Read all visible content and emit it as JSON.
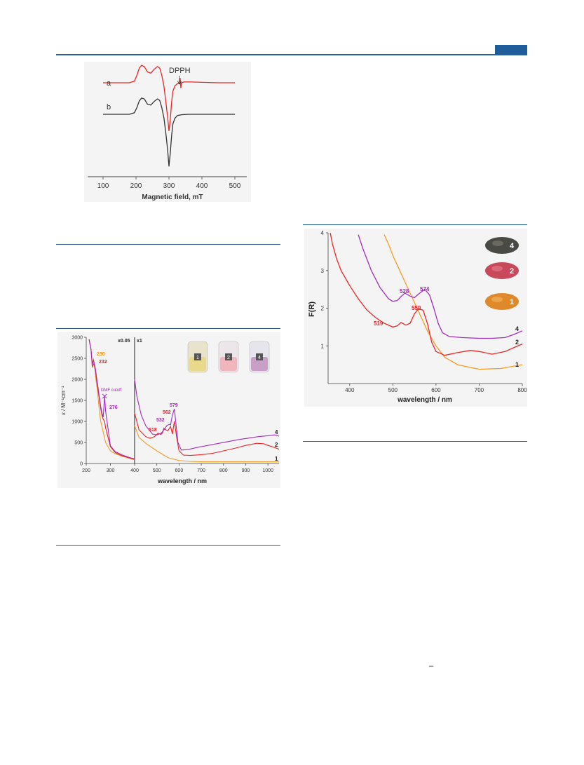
{
  "colors": {
    "rule": "#2a5f92",
    "tab": "#1f5c99",
    "red": "#ee2424",
    "orange": "#f59b24",
    "purple": "#a22cc0",
    "black": "#333333",
    "label_red": "#e3262b",
    "label_orange": "#f29a1a",
    "label_purple": "#a12ab5"
  },
  "stray_mark": "–",
  "chart_data": [
    {
      "id": "epr",
      "type": "line",
      "xlabel": "Magnetic field, mT",
      "ylabel": "",
      "xlim": [
        100,
        500
      ],
      "x_ticks": [
        "100",
        "200",
        "300",
        "400",
        "500"
      ],
      "series": [
        {
          "name": "a",
          "color": "#ee2424",
          "x": [
            100,
            180,
            195,
            203,
            210,
            217,
            225,
            235,
            245,
            255,
            265,
            272,
            278,
            285,
            290,
            296,
            300,
            304,
            308,
            312,
            318,
            326,
            332,
            334,
            336,
            338,
            345,
            365,
            400,
            450,
            500
          ],
          "y": [
            0,
            0,
            4,
            20,
            38,
            45,
            42,
            28,
            25,
            35,
            42,
            38,
            20,
            -10,
            -45,
            -90,
            -125,
            -95,
            -50,
            -22,
            -8,
            -2,
            -2,
            12,
            -14,
            0,
            2,
            2,
            1,
            0,
            0
          ]
        },
        {
          "name": "b",
          "color": "#333333",
          "x": [
            100,
            180,
            195,
            203,
            210,
            217,
            225,
            235,
            245,
            255,
            265,
            272,
            278,
            285,
            290,
            296,
            300,
            304,
            308,
            312,
            318,
            326,
            340,
            360,
            400,
            450,
            500
          ],
          "y": [
            0,
            0,
            4,
            18,
            35,
            42,
            40,
            26,
            24,
            33,
            40,
            36,
            18,
            -10,
            -45,
            -92,
            -135,
            -100,
            -55,
            -25,
            -10,
            -3,
            -1,
            0,
            0,
            0,
            0
          ]
        }
      ],
      "annotations": [
        {
          "text": "DPPH",
          "x": 334
        }
      ]
    },
    {
      "id": "uvvis",
      "type": "line",
      "xlabel": "wavelength / nm",
      "ylabel": "ε / M⁻¹cm⁻¹",
      "ylim": [
        0,
        3000
      ],
      "y_ticks": [
        "0",
        "500",
        "1000",
        "1500",
        "2000",
        "2500",
        "3000"
      ],
      "x_ticks_left": [
        "200",
        "300",
        "400"
      ],
      "x_ticks_right": [
        "500",
        "600",
        "700",
        "800",
        "900",
        "1000"
      ],
      "scale_labels": [
        "x0.05",
        "x1"
      ],
      "series": [
        {
          "name": "1",
          "color": "#f59b24",
          "left_x": [
            212,
            220,
            225,
            230,
            235,
            240,
            245,
            250,
            255,
            260,
            270,
            280,
            300,
            320,
            350,
            380,
            400
          ],
          "left_y": [
            2950,
            2700,
            2400,
            2480,
            2300,
            2000,
            1800,
            1500,
            1200,
            1000,
            750,
            500,
            300,
            230,
            170,
            120,
            90
          ],
          "right_x": [
            400,
            420,
            450,
            500,
            550,
            600,
            650,
            700,
            800,
            900,
            1000,
            1050
          ],
          "right_y": [
            900,
            620,
            480,
            300,
            140,
            70,
            50,
            40,
            40,
            40,
            40,
            40
          ]
        },
        {
          "name": "2",
          "color": "#ee2424",
          "left_x": [
            212,
            220,
            225,
            232,
            238,
            245,
            250,
            255,
            260,
            265,
            270,
            276,
            280,
            300,
            320,
            350,
            380,
            400
          ],
          "left_y": [
            2950,
            2700,
            2300,
            2380,
            2200,
            1900,
            1700,
            1500,
            1300,
            1150,
            1050,
            1000,
            850,
            400,
            260,
            180,
            130,
            100
          ],
          "right_x": [
            400,
            420,
            450,
            470,
            490,
            505,
            518,
            525,
            532,
            540,
            550,
            562,
            570,
            579,
            590,
            600,
            620,
            650,
            700,
            750,
            800,
            850,
            900,
            950,
            980,
            1000,
            1030,
            1050
          ],
          "right_y": [
            1200,
            800,
            640,
            600,
            640,
            720,
            690,
            720,
            840,
            800,
            780,
            880,
            700,
            1000,
            600,
            300,
            200,
            190,
            210,
            240,
            300,
            360,
            430,
            480,
            470,
            430,
            380,
            340
          ]
        },
        {
          "name": "4",
          "color": "#a22cc0",
          "left_x": [
            212,
            220,
            225,
            230,
            238,
            245,
            250,
            255,
            260,
            265,
            270,
            276,
            280,
            300,
            320,
            350,
            380,
            400
          ],
          "left_y": [
            2950,
            2700,
            2350,
            2450,
            2250,
            1950,
            1750,
            1550,
            1350,
            1200,
            1100,
            1600,
            1250,
            420,
            280,
            200,
            140,
            110
          ],
          "right_x": [
            400,
            410,
            430,
            450,
            480,
            500,
            520,
            532,
            545,
            555,
            562,
            570,
            579,
            585,
            595,
            610,
            640,
            680,
            720,
            770,
            820,
            870,
            920,
            960,
            1000,
            1030,
            1050
          ],
          "right_y": [
            2000,
            1600,
            1150,
            900,
            700,
            680,
            720,
            800,
            900,
            930,
            920,
            1150,
            1300,
            1000,
            500,
            320,
            330,
            380,
            420,
            470,
            520,
            570,
            610,
            640,
            660,
            680,
            650
          ]
        }
      ],
      "annotations": [
        {
          "text": "230",
          "color": "#f29a1a"
        },
        {
          "text": "232",
          "color": "#e3262b"
        },
        {
          "text": "DMF cutoff",
          "color": "#a12ab5"
        },
        {
          "text": "276",
          "color": "#a12ab5"
        },
        {
          "text": "518",
          "color": "#e3262b"
        },
        {
          "text": "532",
          "color": "#a12ab5"
        },
        {
          "text": "562",
          "color": "#e3262b"
        },
        {
          "text": "579",
          "color": "#a12ab5"
        }
      ],
      "series_end_labels": [
        "4",
        "2",
        "1"
      ],
      "vial_labels": [
        "1",
        "2",
        "4"
      ]
    },
    {
      "id": "reflectance",
      "type": "line",
      "xlabel": "wavelength / nm",
      "ylabel": "F(R)",
      "xlim": [
        350,
        800
      ],
      "ylim": [
        0,
        4
      ],
      "x_ticks": [
        "400",
        "500",
        "600",
        "700",
        "800"
      ],
      "y_ticks": [
        "1",
        "2",
        "3",
        "4"
      ],
      "series": [
        {
          "name": "1",
          "color": "#f59b24",
          "x": [
            480,
            490,
            500,
            520,
            540,
            560,
            580,
            600,
            620,
            650,
            700,
            750,
            800
          ],
          "y": [
            3.95,
            3.7,
            3.4,
            2.9,
            2.4,
            1.9,
            1.4,
            1.0,
            0.7,
            0.5,
            0.38,
            0.4,
            0.5
          ]
        },
        {
          "name": "2",
          "color": "#ee2424",
          "x": [
            355,
            360,
            370,
            380,
            400,
            420,
            440,
            460,
            480,
            500,
            510,
            519,
            530,
            540,
            550,
            559,
            570,
            580,
            590,
            600,
            620,
            650,
            680,
            700,
            730,
            760,
            780,
            800
          ],
          "y": [
            4.0,
            3.7,
            3.3,
            3.0,
            2.6,
            2.25,
            1.95,
            1.75,
            1.6,
            1.5,
            1.53,
            1.62,
            1.55,
            1.6,
            1.85,
            1.98,
            1.95,
            1.6,
            1.1,
            0.85,
            0.75,
            0.82,
            0.88,
            0.85,
            0.78,
            0.85,
            0.95,
            1.05
          ]
        },
        {
          "name": "4",
          "color": "#a22cc0",
          "x": [
            420,
            430,
            450,
            470,
            490,
            500,
            510,
            520,
            528,
            540,
            550,
            560,
            574,
            585,
            595,
            605,
            615,
            630,
            660,
            700,
            730,
            760,
            780,
            800
          ],
          "y": [
            3.95,
            3.6,
            3.0,
            2.55,
            2.25,
            2.18,
            2.2,
            2.32,
            2.4,
            2.32,
            2.28,
            2.38,
            2.5,
            2.35,
            2.0,
            1.6,
            1.35,
            1.25,
            1.22,
            1.2,
            1.2,
            1.22,
            1.3,
            1.4
          ]
        }
      ],
      "annotations": [
        {
          "text": "528",
          "color": "#a12ab5"
        },
        {
          "text": "574",
          "color": "#a12ab5"
        },
        {
          "text": "519",
          "color": "#e3262b"
        },
        {
          "text": "559",
          "color": "#e3262b"
        }
      ],
      "series_end_labels": [
        "4",
        "2",
        "1"
      ],
      "sample_labels": [
        "4",
        "2",
        "1"
      ]
    }
  ]
}
